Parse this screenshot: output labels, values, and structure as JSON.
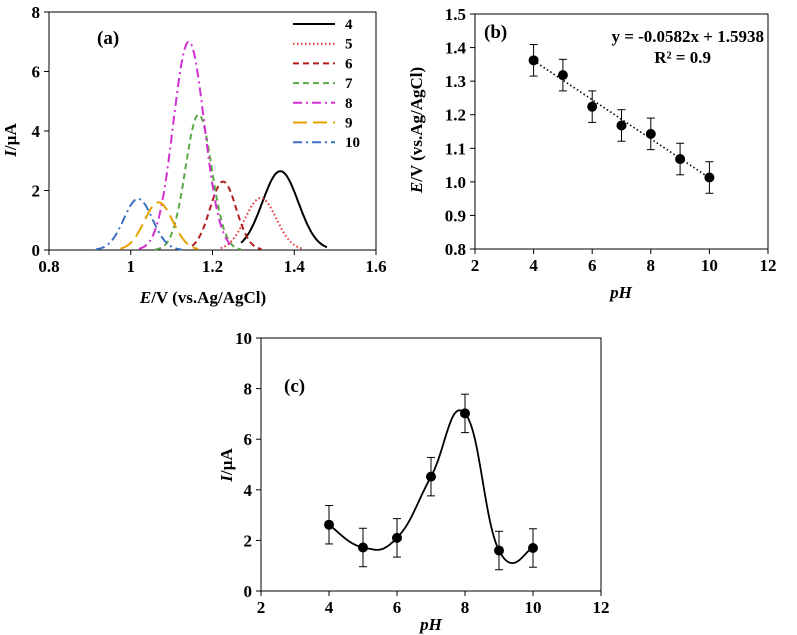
{
  "chart_data": [
    {
      "type": "line",
      "panel_label": "(a)",
      "xlabel": {
        "italic": "E",
        "rest": "/V (vs.Ag/AgCl)"
      },
      "ylabel": {
        "italic": "I",
        "rest": "/µA"
      },
      "xlim": [
        0.8,
        1.6
      ],
      "ylim": [
        0,
        8
      ],
      "xticks": [
        "0.8",
        "1",
        "1.2",
        "1.4",
        "1.6"
      ],
      "yticks": [
        "0",
        "2",
        "4",
        "6",
        "8"
      ],
      "legend_position": "top-right",
      "series": [
        {
          "name": "4",
          "color": "#000000",
          "dash": "solid",
          "peak_E": 1.366,
          "peak_I": 2.65,
          "width": 0.044,
          "E_range": [
            1.27,
            1.48
          ]
        },
        {
          "name": "5",
          "color": "#e8322b",
          "dash": "dotted",
          "peak_E": 1.318,
          "peak_I": 1.75,
          "width": 0.038,
          "E_range": [
            1.22,
            1.42
          ]
        },
        {
          "name": "6",
          "color": "#b01e1e",
          "dash": "dashed",
          "peak_E": 1.226,
          "peak_I": 2.3,
          "width": 0.032,
          "E_range": [
            1.15,
            1.32
          ]
        },
        {
          "name": "7",
          "color": "#5aaa46",
          "dash": "dashed",
          "peak_E": 1.166,
          "peak_I": 4.55,
          "width": 0.032,
          "E_range": [
            1.06,
            1.27
          ]
        },
        {
          "name": "8",
          "color": "#d22fd2",
          "dash": "dashdot",
          "peak_E": 1.142,
          "peak_I": 7.0,
          "width": 0.038,
          "E_range": [
            1.02,
            1.25
          ]
        },
        {
          "name": "9",
          "color": "#e6a100",
          "dash": "longdash",
          "peak_E": 1.068,
          "peak_I": 1.6,
          "width": 0.035,
          "E_range": [
            0.975,
            1.165
          ]
        },
        {
          "name": "10",
          "color": "#3b6fc4",
          "dash": "dashdot",
          "peak_E": 1.018,
          "peak_I": 1.72,
          "width": 0.035,
          "E_range": [
            0.915,
            1.125
          ]
        }
      ]
    },
    {
      "type": "scatter",
      "panel_label": "(b)",
      "xlabel": {
        "italic": "pH",
        "rest": ""
      },
      "ylabel": {
        "italic": "E",
        "rest": "/V (vs.Ag/AgCl)"
      },
      "xlim": [
        2,
        12
      ],
      "ylim": [
        0.8,
        1.5
      ],
      "xticks": [
        "2",
        "4",
        "6",
        "8",
        "10",
        "12"
      ],
      "yticks": [
        "0.8",
        "0.9",
        "1.0",
        "1.1",
        "1.2",
        "1.3",
        "1.4",
        "1.5"
      ],
      "x": [
        4,
        5,
        6,
        7,
        8,
        9,
        10
      ],
      "y": [
        1.362,
        1.318,
        1.224,
        1.168,
        1.143,
        1.068,
        1.013
      ],
      "error": 0.047,
      "trendline": {
        "slope": -0.0582,
        "intercept": 1.5938,
        "style": "dotted"
      },
      "equation": "y = -0.0582x + 1.5938",
      "r_squared": "R² = 0.9"
    },
    {
      "type": "line",
      "panel_label": "(c)",
      "xlabel": {
        "italic": "pH",
        "rest": ""
      },
      "ylabel": {
        "italic": "I",
        "rest": "/µA"
      },
      "xlim": [
        2,
        12
      ],
      "ylim": [
        0,
        10
      ],
      "xticks": [
        "2",
        "4",
        "6",
        "8",
        "10",
        "12"
      ],
      "yticks": [
        "0",
        "2",
        "4",
        "6",
        "8",
        "10"
      ],
      "x": [
        4,
        5,
        6,
        7,
        8,
        9,
        10
      ],
      "y": [
        2.62,
        1.72,
        2.1,
        4.52,
        7.02,
        1.6,
        1.7
      ],
      "error": 0.76,
      "smooth": true
    }
  ]
}
